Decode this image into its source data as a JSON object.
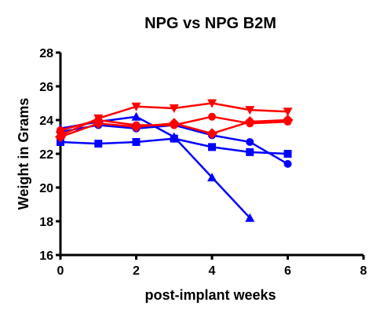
{
  "chart_data": {
    "type": "line",
    "title": "NPG vs NPG B2M",
    "xlabel": "post-implant weeks",
    "ylabel": "Weight in Grams",
    "xlim": [
      0,
      8
    ],
    "ylim": [
      16,
      28
    ],
    "xticks": [
      "0",
      "2",
      "4",
      "6",
      "8"
    ],
    "yticks": [
      "16",
      "18",
      "20",
      "22",
      "24",
      "26",
      "28"
    ],
    "grid": false,
    "legend": "none",
    "series": [
      {
        "color": "#0000ff",
        "marker": "square",
        "x": [
          0,
          1,
          2,
          3,
          4,
          5,
          6
        ],
        "y": [
          22.7,
          22.6,
          22.7,
          22.9,
          22.4,
          22.1,
          22.0
        ]
      },
      {
        "color": "#0000ff",
        "marker": "triangle-up",
        "x": [
          0,
          1,
          2,
          3,
          4,
          5
        ],
        "y": [
          23.5,
          23.9,
          24.2,
          23.0,
          20.6,
          18.2
        ]
      },
      {
        "color": "#0000ff",
        "marker": "circle",
        "x": [
          0,
          1,
          2,
          3,
          4,
          5,
          6
        ],
        "y": [
          23.3,
          23.7,
          23.5,
          23.7,
          23.1,
          22.7,
          21.4
        ]
      },
      {
        "color": "#ff0000",
        "marker": "triangle-down",
        "x": [
          0,
          1,
          2,
          3,
          4,
          5,
          6
        ],
        "y": [
          23.1,
          24.1,
          24.8,
          24.7,
          25.0,
          24.6,
          24.5
        ]
      },
      {
        "color": "#ff0000",
        "marker": "diamond",
        "x": [
          0,
          1,
          2,
          3,
          4,
          5,
          6
        ],
        "y": [
          23.0,
          23.8,
          23.6,
          23.8,
          23.2,
          23.9,
          24.0
        ]
      },
      {
        "color": "#ff0000",
        "marker": "circle",
        "x": [
          0,
          1,
          2,
          3,
          4,
          5,
          6
        ],
        "y": [
          23.4,
          24.0,
          23.7,
          23.7,
          24.2,
          23.8,
          23.9
        ]
      }
    ]
  }
}
